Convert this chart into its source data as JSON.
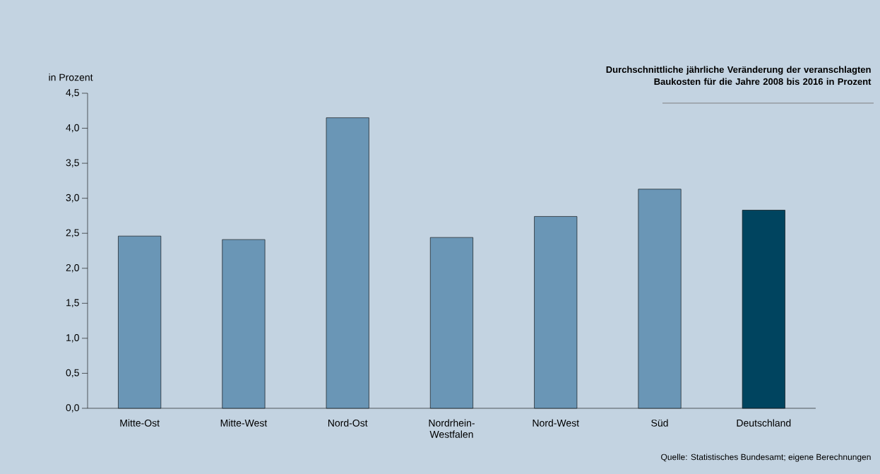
{
  "chart_data": {
    "type": "bar",
    "title": "Durchschnittliche jährliche Veränderung der veranschlagten Baukosten für die Jahre 2008 bis 2016 in Prozent",
    "ylabel": "in Prozent",
    "categories": [
      "Mitte-Ost",
      "Mitte-West",
      "Nord-Ost",
      "Nordrhein-Westfalen",
      "Nord-West",
      "Süd",
      "Deutschland"
    ],
    "values": [
      2.46,
      2.41,
      4.15,
      2.44,
      2.74,
      3.13,
      2.83
    ],
    "colors": [
      "#6a96b6",
      "#6a96b6",
      "#6a96b6",
      "#6a96b6",
      "#6a96b6",
      "#6a96b6",
      "#00445f"
    ],
    "ylim": [
      0,
      4.5
    ],
    "yticks": [
      {
        "value": 0,
        "label": "0,0"
      },
      {
        "value": 0.5,
        "label": "0,5"
      },
      {
        "value": 1,
        "label": "1,0"
      },
      {
        "value": 1.5,
        "label": "1,5"
      },
      {
        "value": 2,
        "label": "2,0"
      },
      {
        "value": 2.5,
        "label": "2,5"
      },
      {
        "value": 3,
        "label": "3,0"
      },
      {
        "value": 3.5,
        "label": "3,5"
      },
      {
        "value": 4,
        "label": "4,0"
      },
      {
        "value": 4.5,
        "label": "4,5"
      }
    ],
    "annotations": [
      "Quelle: Statistisches Bundesamt; eigene Berechnungen"
    ]
  }
}
